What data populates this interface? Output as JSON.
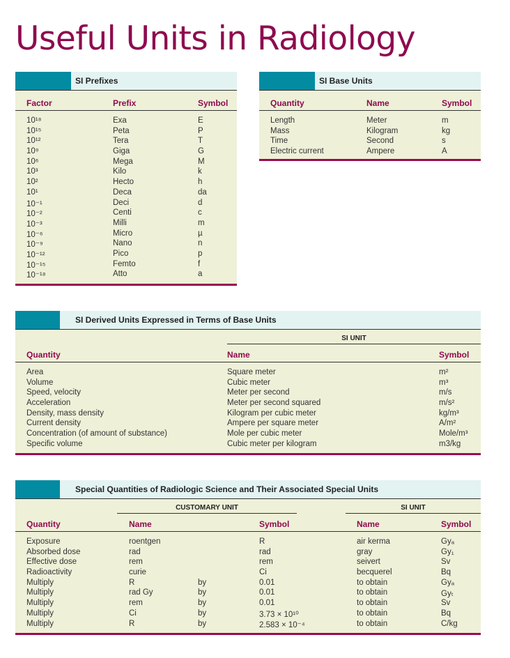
{
  "title": "Useful Units in Radiology",
  "prefixes": {
    "heading": "SI Prefixes",
    "columns": [
      "Factor",
      "Prefix",
      "Symbol"
    ],
    "rows": [
      [
        "10¹⁸",
        "Exa",
        "E"
      ],
      [
        "10¹⁵",
        "Peta",
        "P"
      ],
      [
        "10¹²",
        "Tera",
        "T"
      ],
      [
        "10⁹",
        "Giga",
        "G"
      ],
      [
        "10⁶",
        "Mega",
        "M"
      ],
      [
        "10³",
        "Kilo",
        "k"
      ],
      [
        "10²",
        "Hecto",
        "h"
      ],
      [
        "10¹",
        "Deca",
        "da"
      ],
      [
        "10⁻¹",
        "Deci",
        "d"
      ],
      [
        "10⁻²",
        "Centi",
        "c"
      ],
      [
        "10⁻³",
        "Milli",
        "m"
      ],
      [
        "10⁻⁶",
        "Micro",
        "µ"
      ],
      [
        "10⁻⁹",
        "Nano",
        "n"
      ],
      [
        "10⁻¹²",
        "Pico",
        "p"
      ],
      [
        "10⁻¹⁵",
        "Femto",
        "f"
      ],
      [
        "10⁻¹⁸",
        "Atto",
        "a"
      ]
    ]
  },
  "base": {
    "heading": "SI Base Units",
    "columns": [
      "Quantity",
      "Name",
      "Symbol"
    ],
    "rows": [
      [
        "Length",
        "Meter",
        "m"
      ],
      [
        "Mass",
        "Kilogram",
        "kg"
      ],
      [
        "Time",
        "Second",
        "s"
      ],
      [
        "Electric current",
        "Ampere",
        "A"
      ]
    ]
  },
  "derived": {
    "heading": "SI Derived Units Expressed in Terms of Base Units",
    "group": "SI UNIT",
    "columns": [
      "Quantity",
      "Name",
      "Symbol"
    ],
    "rows": [
      [
        "Area",
        "Square meter",
        "m²"
      ],
      [
        "Volume",
        "Cubic meter",
        "m³"
      ],
      [
        "Speed, velocity",
        "Meter per second",
        "m/s"
      ],
      [
        "Acceleration",
        "Meter per second squared",
        "m/s²"
      ],
      [
        "Density, mass density",
        "Kilogram per cubic meter",
        "kg/m³"
      ],
      [
        "Current density",
        "Ampere per square meter",
        "A/m²"
      ],
      [
        "Concentration (of amount of substance)",
        "Mole per cubic meter",
        "Mole/m³"
      ],
      [
        "Specific volume",
        "Cubic meter per kilogram",
        "m3/kg"
      ]
    ]
  },
  "special": {
    "heading": "Special Quantities of Radiologic Science and Their Associated Special Units",
    "group_customary": "CUSTOMARY UNIT",
    "group_si": "SI UNIT",
    "columns": [
      "Quantity",
      "Name",
      "",
      "Symbol",
      "Name",
      "Symbol"
    ],
    "rows": [
      [
        "Exposure",
        "roentgen",
        "",
        "R",
        "air kerma",
        "Gyₐ"
      ],
      [
        "Absorbed dose",
        "rad",
        "",
        "rad",
        "gray",
        "Gy₁"
      ],
      [
        "Effective dose",
        "rem",
        "",
        "rem",
        "seivert",
        "Sv"
      ],
      [
        "Radioactivity",
        "curie",
        "",
        "Ci",
        "becquerel",
        "Bq"
      ],
      [
        "Multiply",
        "R",
        "by",
        "0.01",
        "to obtain",
        "Gyₐ"
      ],
      [
        "Multiply",
        "rad Gy",
        "by",
        "0.01",
        "to obtain",
        "Gyₜ"
      ],
      [
        "Multiply",
        "rem",
        "by",
        "0.01",
        "to obtain",
        "Sv"
      ],
      [
        "Multiply",
        "Ci",
        "by",
        "3.73 × 10¹⁰",
        "to obtain",
        "Bq"
      ],
      [
        "Multiply",
        "R",
        "by",
        "2.583 × 10⁻⁴",
        "to obtain",
        "C/kg"
      ]
    ]
  }
}
